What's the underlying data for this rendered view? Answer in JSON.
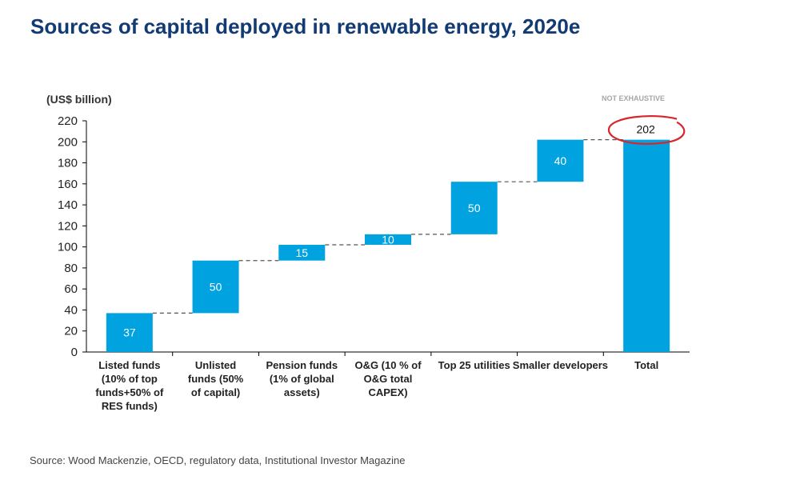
{
  "title": "Sources of capital deployed in renewable energy, 2020e",
  "source": "Source: Wood Mackenzie, OECD, regulatory data, Institutional Investor Magazine",
  "chart_data": {
    "type": "waterfall",
    "unit_label": "(US$ billion)",
    "note": "NOT EXHAUSTIVE",
    "ylim": [
      0,
      220
    ],
    "yticks": [
      0,
      20,
      40,
      60,
      80,
      100,
      120,
      140,
      160,
      180,
      200,
      220
    ],
    "categories": [
      [
        "Listed funds",
        "(10% of top",
        "funds+50% of",
        "RES funds)"
      ],
      [
        "Unlisted",
        "funds (50%",
        "of capital)"
      ],
      [
        "Pension funds",
        "(1% of global",
        "assets)"
      ],
      [
        "O&G (10 % of",
        "O&G total",
        "CAPEX)"
      ],
      [
        "Top 25 utilities"
      ],
      [
        "Smaller developers"
      ],
      [
        "Total"
      ]
    ],
    "values": [
      37,
      50,
      15,
      10,
      50,
      40,
      202
    ],
    "is_total": [
      false,
      false,
      false,
      false,
      false,
      false,
      true
    ],
    "bar_color": "#00a3e0",
    "highlight_color": "#d9262b",
    "highlighted_label": "202"
  }
}
